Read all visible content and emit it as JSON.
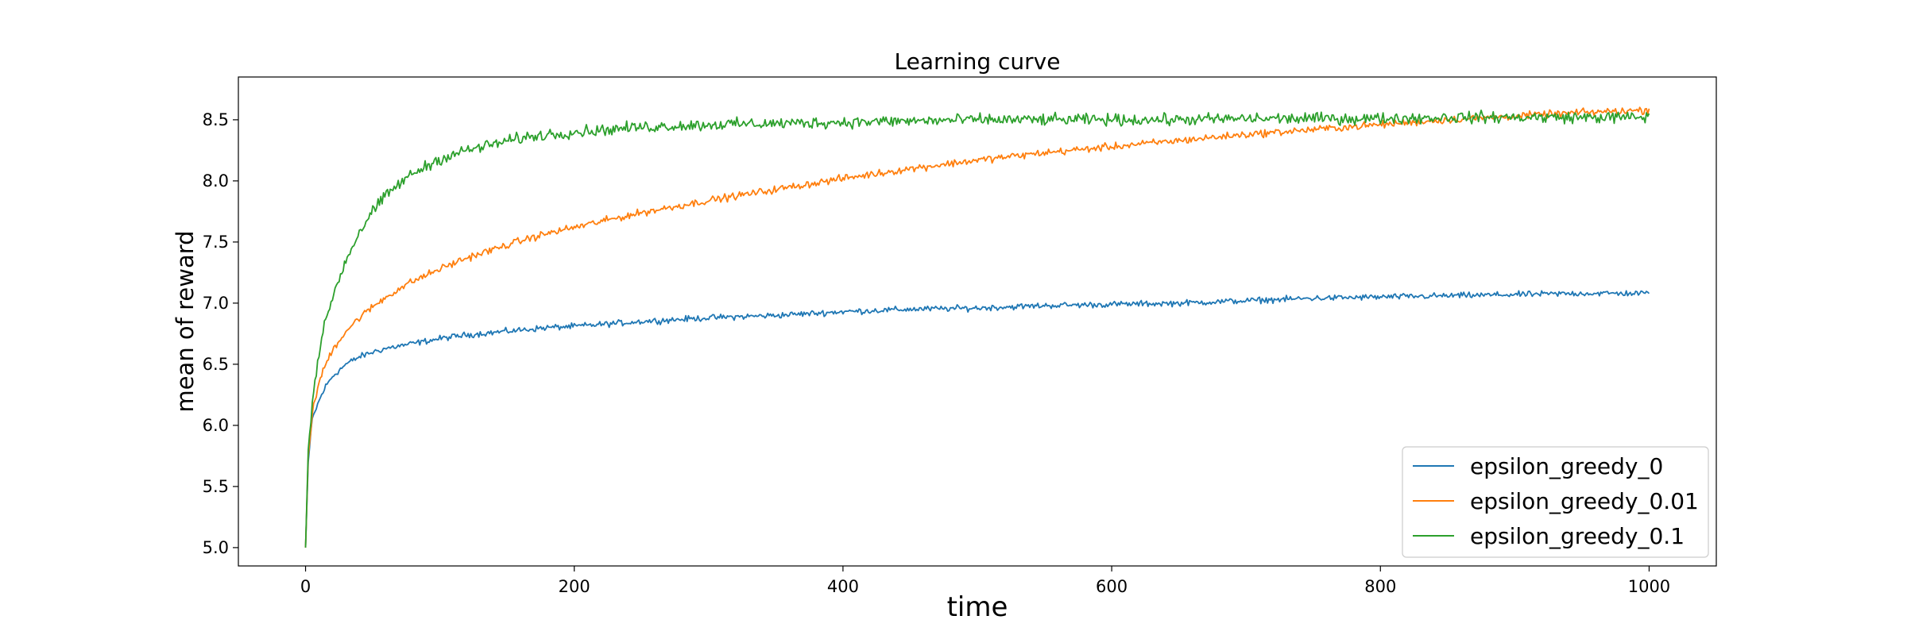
{
  "chart_data": {
    "type": "line",
    "title": "Learning curve",
    "xlabel": "time",
    "ylabel": "mean of reward",
    "xlim": [
      -50,
      1050
    ],
    "ylim": [
      4.85,
      8.85
    ],
    "xticks": [
      0,
      200,
      400,
      600,
      800,
      1000
    ],
    "yticks": [
      5.0,
      5.5,
      6.0,
      6.5,
      7.0,
      7.5,
      8.0,
      8.5
    ],
    "grid": false,
    "legend_position": "bottom-right",
    "series": [
      {
        "name": "epsilon_greedy_0",
        "color": "#1f77b4",
        "x": [
          0,
          2,
          5,
          10,
          15,
          20,
          30,
          40,
          50,
          60,
          70,
          80,
          90,
          100,
          120,
          140,
          160,
          180,
          200,
          250,
          300,
          350,
          400,
          450,
          500,
          550,
          600,
          650,
          700,
          750,
          800,
          850,
          900,
          950,
          1000
        ],
        "y": [
          5.0,
          5.7,
          6.05,
          6.2,
          6.32,
          6.4,
          6.5,
          6.56,
          6.6,
          6.63,
          6.65,
          6.67,
          6.69,
          6.71,
          6.74,
          6.76,
          6.78,
          6.8,
          6.81,
          6.85,
          6.88,
          6.9,
          6.93,
          6.95,
          6.96,
          6.98,
          6.99,
          7.0,
          7.02,
          7.04,
          7.05,
          7.06,
          7.07,
          7.08,
          7.08
        ]
      },
      {
        "name": "epsilon_greedy_0.01",
        "color": "#ff7f0e",
        "x": [
          0,
          2,
          5,
          10,
          15,
          20,
          30,
          40,
          50,
          60,
          70,
          80,
          90,
          100,
          120,
          140,
          160,
          180,
          200,
          250,
          300,
          350,
          400,
          450,
          500,
          550,
          600,
          650,
          700,
          750,
          800,
          850,
          900,
          950,
          1000
        ],
        "y": [
          5.0,
          5.75,
          6.1,
          6.35,
          6.5,
          6.62,
          6.77,
          6.88,
          6.97,
          7.05,
          7.12,
          7.18,
          7.23,
          7.28,
          7.37,
          7.44,
          7.51,
          7.57,
          7.62,
          7.74,
          7.84,
          7.93,
          8.02,
          8.1,
          8.17,
          8.23,
          8.28,
          8.33,
          8.38,
          8.42,
          8.46,
          8.5,
          8.53,
          8.56,
          8.58
        ]
      },
      {
        "name": "epsilon_greedy_0.1",
        "color": "#2ca02c",
        "x": [
          0,
          2,
          5,
          10,
          15,
          20,
          30,
          40,
          50,
          60,
          70,
          80,
          90,
          100,
          120,
          140,
          160,
          180,
          200,
          250,
          300,
          350,
          400,
          450,
          500,
          550,
          600,
          650,
          700,
          750,
          800,
          850,
          900,
          950,
          1000
        ],
        "y": [
          5.0,
          5.8,
          6.2,
          6.6,
          6.85,
          7.05,
          7.35,
          7.58,
          7.75,
          7.88,
          7.98,
          8.06,
          8.12,
          8.18,
          8.25,
          8.3,
          8.35,
          8.38,
          8.4,
          8.44,
          8.46,
          8.47,
          8.48,
          8.49,
          8.5,
          8.5,
          8.5,
          8.5,
          8.51,
          8.51,
          8.51,
          8.52,
          8.52,
          8.52,
          8.52
        ]
      }
    ]
  }
}
